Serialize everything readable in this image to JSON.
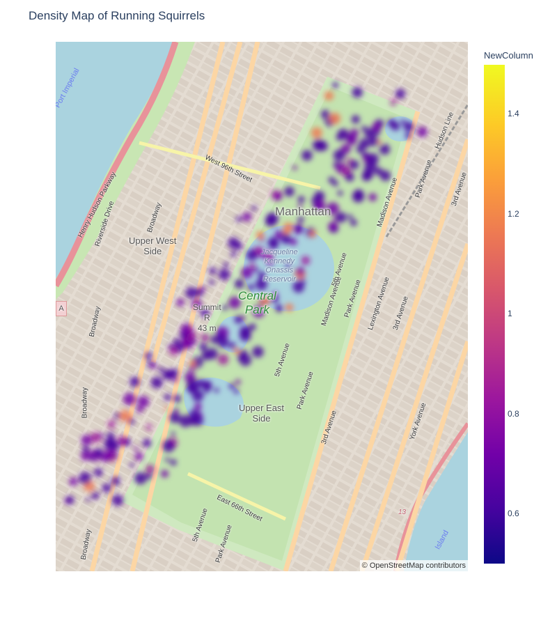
{
  "title": "Density Map of Running Squirrels",
  "attribution": "© OpenStreetMap contributors",
  "map": {
    "place_labels": {
      "manhattan": "Manhattan",
      "upper_west_side": "Upper West\nSide",
      "upper_east_side": "Upper East\nSide",
      "central_park": "Central\nPark",
      "reservoir": "Jacqueline\nKennedy\nOnassis\nReservoir",
      "summit": "Summit\nR\n43 m",
      "a_badge": "A"
    },
    "street_labels": {
      "west_96th": "West 96th Street",
      "henry_hudson": "Henry Hudson Parkway",
      "riverside": "Riverside Drive",
      "broadway_1": "Broadway",
      "broadway_2": "Broadway",
      "broadway_3": "Broadway",
      "broadway_4": "Broadway",
      "east_66th": "East 66th Street",
      "madison_1": "Madison Avenue",
      "madison_2": "Madison Avenue",
      "park_1": "Park Avenue",
      "park_2": "Park Avenue",
      "park_3": "Park Avenue",
      "park_4": "Park Avenue",
      "lexington": "Lexington Avenue",
      "third_1": "3rd Avenue",
      "third_2": "3rd Avenue",
      "third_3": "3rd Avenue",
      "fifth_1": "5th Avenue",
      "fifth_2": "5th Avenue",
      "fifth_3": "5th Avenue",
      "york": "York Avenue",
      "hudson_line": "Hudson Line",
      "route_13": "13"
    },
    "water_labels": {
      "port_imperial": "Port Imperial",
      "island": "Island"
    }
  },
  "colorbar": {
    "title": "NewColumn",
    "min": 0.5,
    "max": 1.5,
    "ticks": [
      "1.4",
      "1.2",
      "1",
      "0.8",
      "0.6"
    ]
  },
  "chart_data": {
    "type": "heatmap",
    "title": "Density Map of Running Squirrels",
    "z_name": "NewColumn",
    "zlim": [
      0.5,
      1.5
    ],
    "colorscale": [
      "#0d0887",
      "#46039f",
      "#7201a8",
      "#9c179e",
      "#bd3786",
      "#d8576b",
      "#ed7953",
      "#fb9f3a",
      "#fdca26",
      "#f0f921"
    ]
  }
}
